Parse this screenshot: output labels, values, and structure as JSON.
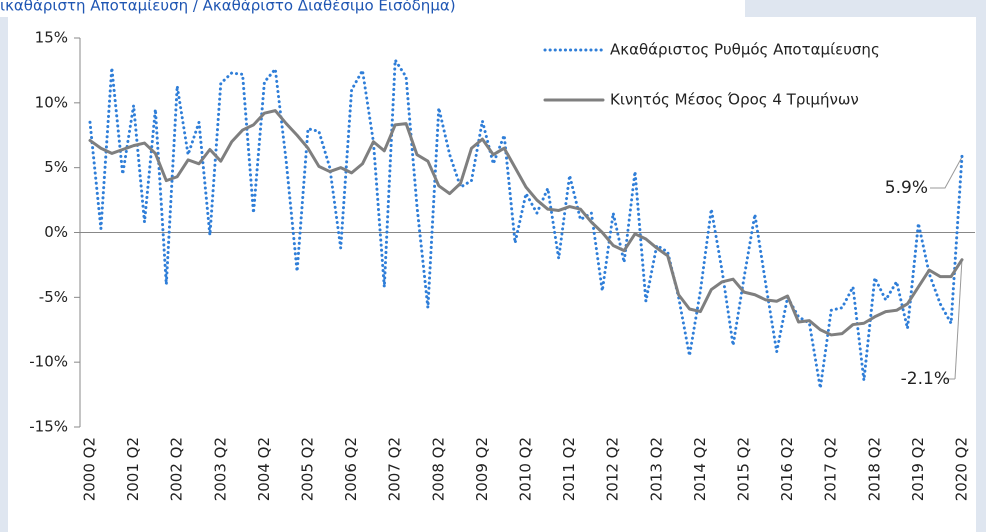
{
  "chart_data": {
    "type": "line",
    "title": "ικαθάριστη Αποταμίευση / Ακαθάριστο Διαθέσιμο Εισόδημα)",
    "categories": [
      "2000 Q2",
      null,
      null,
      null,
      "2001 Q2",
      null,
      null,
      null,
      "2002 Q2",
      null,
      null,
      null,
      "2003 Q2",
      null,
      null,
      null,
      "2004 Q2",
      null,
      null,
      null,
      "2005 Q2",
      null,
      null,
      null,
      "2006 Q2",
      null,
      null,
      null,
      "2007 Q2",
      null,
      null,
      null,
      "2008 Q2",
      null,
      null,
      null,
      "2009 Q2",
      null,
      null,
      null,
      "2010 Q2",
      null,
      null,
      null,
      "2011 Q2",
      null,
      null,
      null,
      "2012 Q2",
      null,
      null,
      null,
      "2013 Q2",
      null,
      null,
      null,
      "2014 Q2",
      null,
      null,
      null,
      "2015 Q2",
      null,
      null,
      null,
      "2016 Q2",
      null,
      null,
      null,
      "2017 Q2",
      null,
      null,
      null,
      "2018 Q2",
      null,
      null,
      null,
      "2019 Q2",
      null,
      null,
      null,
      "2020 Q2"
    ],
    "series": [
      {
        "name": "Ακαθάριστος Ρυθμός Αποταμίευσης",
        "color": "#2f7ed8",
        "style": "dotted",
        "values": [
          8.5,
          0.3,
          12.7,
          4.5,
          9.8,
          0.8,
          9.5,
          -4,
          11.3,
          6,
          8.5,
          -0.2,
          11.5,
          12.3,
          12.2,
          1.5,
          11.6,
          12.6,
          5.5,
          -3,
          8,
          7.8,
          5,
          -1.2,
          11,
          12.5,
          7,
          -4.2,
          13.3,
          12,
          2,
          -5.8,
          9.6,
          6,
          3.5,
          4,
          8.6,
          5.3,
          7.5,
          -0.8,
          3,
          1.5,
          3.4,
          -2,
          4.4,
          1,
          1.5,
          -4.5,
          1.5,
          -2.3,
          4.7,
          -5.3,
          -1,
          -1.5,
          -5,
          -9.5,
          -4.5,
          1.8,
          -3,
          -8.7,
          -3.5,
          1.4,
          -4,
          -9.2,
          -5,
          -6.5,
          -7,
          -12,
          -6,
          -5.8,
          -4.2,
          -11.4,
          -3.5,
          -5.2,
          -3.8,
          -7.4,
          0.7,
          -3.2,
          -5.5,
          -7,
          5.9
        ],
        "value_labels": [
          null,
          null,
          null,
          null,
          null,
          null,
          null,
          null,
          null,
          null,
          null,
          null,
          null,
          null,
          null,
          null,
          null,
          null,
          null,
          null,
          null,
          null,
          null,
          null,
          null,
          null,
          null,
          null,
          null,
          null,
          null,
          null,
          null,
          null,
          null,
          null,
          null,
          null,
          null,
          null,
          null,
          null,
          null,
          null,
          null,
          null,
          null,
          null,
          null,
          null,
          null,
          null,
          null,
          null,
          null,
          null,
          null,
          null,
          null,
          null,
          null,
          null,
          null,
          null,
          null,
          null,
          null,
          null,
          null,
          null,
          null,
          null,
          null,
          null,
          null,
          null,
          null,
          null,
          null,
          null,
          "5.9%"
        ]
      },
      {
        "name": "Κινητός Μέσος Όρος 4 Τριμήνων",
        "color": "#7f7f7f",
        "style": "solid",
        "values": [
          7.1,
          6.5,
          6.1,
          6.4,
          6.7,
          6.9,
          6.1,
          4.0,
          4.3,
          5.6,
          5.3,
          6.4,
          5.5,
          7.0,
          7.9,
          8.3,
          9.2,
          9.4,
          8.4,
          7.5,
          6.5,
          5.1,
          4.7,
          5.0,
          4.6,
          5.3,
          7.0,
          6.3,
          8.3,
          8.4,
          6.0,
          5.5,
          3.6,
          3.0,
          3.8,
          6.5,
          7.2,
          6.0,
          6.5,
          5.0,
          3.5,
          2.5,
          1.8,
          1.7,
          2.0,
          1.8,
          0.8,
          0.0,
          -1.0,
          -1.4,
          -0.1,
          -0.5,
          -1.2,
          -1.8,
          -4.8,
          -5.9,
          -6.1,
          -4.4,
          -3.8,
          -3.6,
          -4.6,
          -4.8,
          -5.2,
          -5.3,
          -4.9,
          -6.9,
          -6.8,
          -7.5,
          -7.9,
          -7.8,
          -7.1,
          -7.0,
          -6.5,
          -6.1,
          -6.0,
          -5.5,
          -4.2,
          -2.9,
          -3.4,
          -3.4,
          -2.1
        ],
        "value_labels": [
          null,
          null,
          null,
          null,
          null,
          null,
          null,
          null,
          null,
          null,
          null,
          null,
          null,
          null,
          null,
          null,
          null,
          null,
          null,
          null,
          null,
          null,
          null,
          null,
          null,
          null,
          null,
          null,
          null,
          null,
          null,
          null,
          null,
          null,
          null,
          null,
          null,
          null,
          null,
          null,
          null,
          null,
          null,
          null,
          null,
          null,
          null,
          null,
          null,
          null,
          null,
          null,
          null,
          null,
          null,
          null,
          null,
          null,
          null,
          null,
          null,
          null,
          null,
          null,
          null,
          null,
          null,
          null,
          null,
          null,
          null,
          null,
          null,
          null,
          null,
          null,
          null,
          null,
          null,
          null,
          "-2.1%"
        ]
      }
    ],
    "ylim": [
      -15,
      15
    ],
    "yticks": [
      {
        "value": -15,
        "label": "-15%"
      },
      {
        "value": -10,
        "label": "-10%"
      },
      {
        "value": -5,
        "label": "-5%"
      },
      {
        "value": 0,
        "label": "0%"
      },
      {
        "value": 5,
        "label": "5%"
      },
      {
        "value": 10,
        "label": "10%"
      },
      {
        "value": 15,
        "label": "15%"
      }
    ],
    "legend": "top-right",
    "grid": false
  }
}
